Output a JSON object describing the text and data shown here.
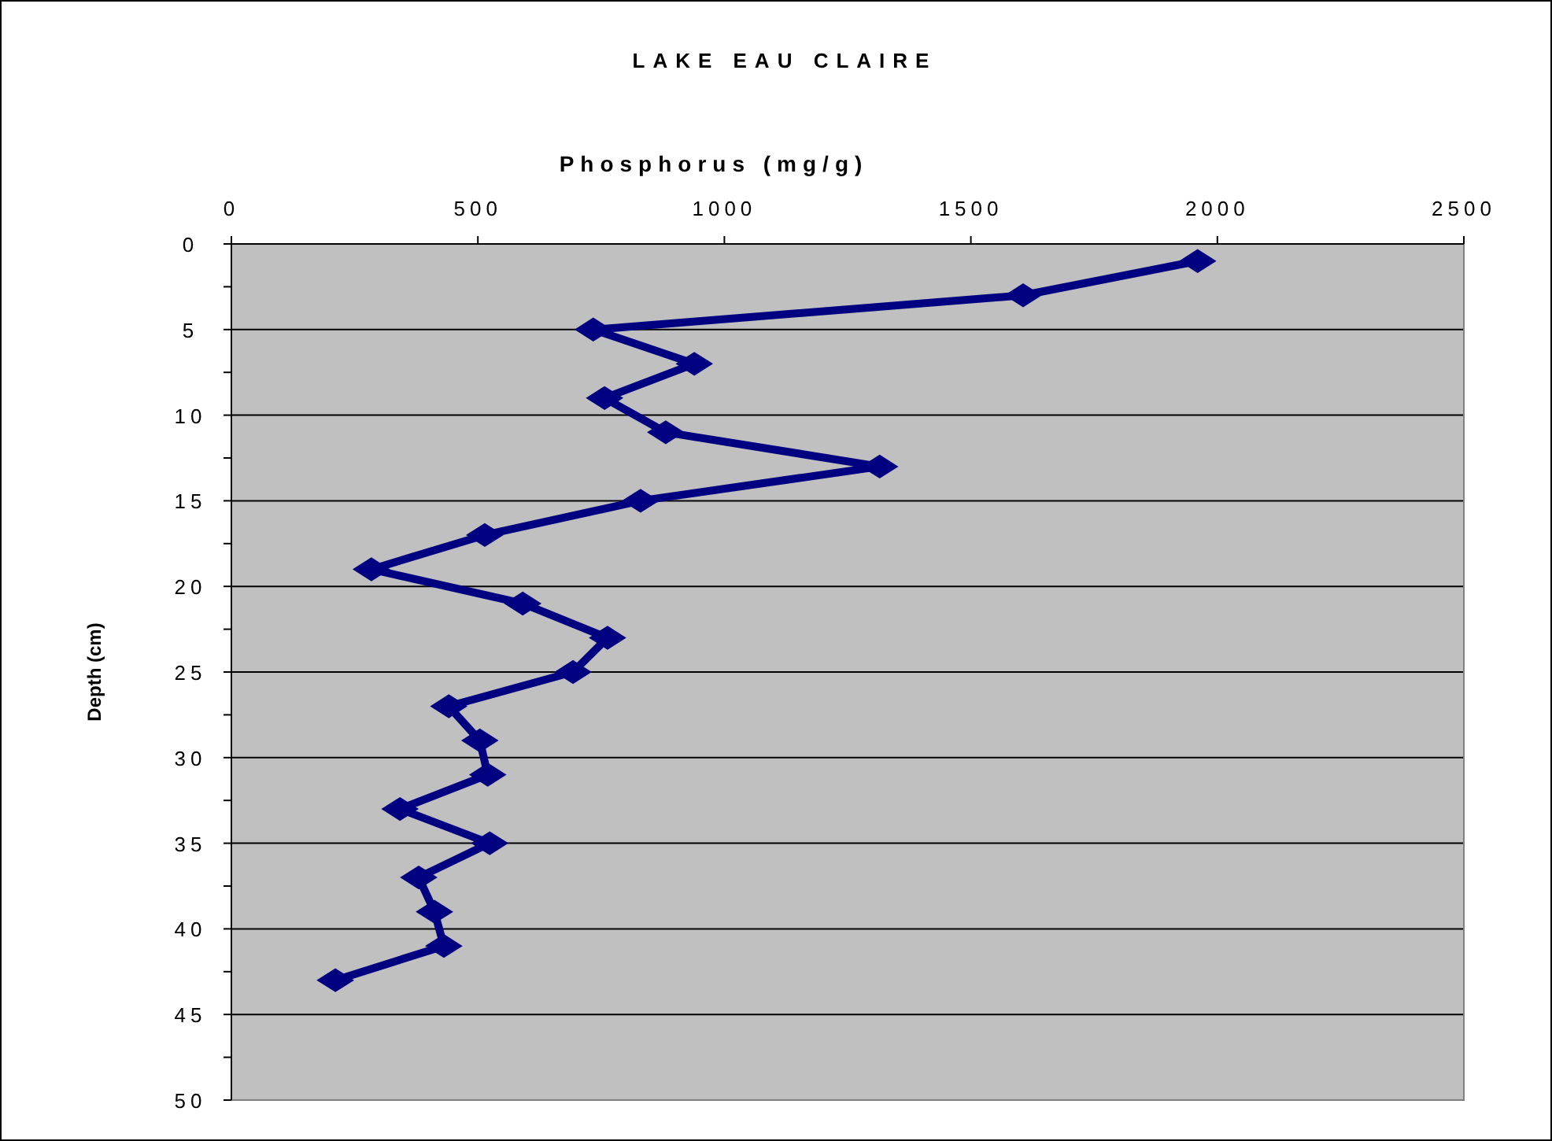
{
  "chart_data": {
    "type": "line",
    "title": "LAKE EAU CLAIRE",
    "xlabel": "Phosphorus (mg/g)",
    "ylabel": "Depth (cm)",
    "series": [
      {
        "color": "#000080",
        "x": [
          1960,
          1606,
          734,
          939,
          757,
          881,
          1315,
          830,
          514,
          284,
          591,
          763,
          693,
          441,
          504,
          520,
          342,
          524,
          380,
          412,
          431,
          211
        ],
        "values": [
          1,
          3,
          5,
          7,
          9,
          11,
          13,
          15,
          17,
          19,
          21,
          23,
          25,
          27,
          29,
          31,
          33,
          35,
          37,
          39,
          41,
          43
        ]
      }
    ],
    "xlim": [
      0,
      2500
    ],
    "xticks": [
      0,
      500,
      1000,
      1500,
      2000,
      2500
    ],
    "ylim": [
      50,
      0
    ],
    "yticks": [
      0,
      {
        "value": 2.5,
        "label": null
      },
      5,
      {
        "value": 7.5,
        "label": null
      },
      10,
      {
        "value": 12.5,
        "label": null
      },
      15,
      {
        "value": 17.5,
        "label": null
      },
      20,
      {
        "value": 22.5,
        "label": null
      },
      25,
      {
        "value": 27.5,
        "label": null
      },
      30,
      {
        "value": 32.5,
        "label": null
      },
      35,
      {
        "value": 37.5,
        "label": null
      },
      40,
      {
        "value": 42.5,
        "label": null
      },
      45,
      {
        "value": 47.5,
        "label": null
      },
      50
    ],
    "grid": "y",
    "marker": "diamond",
    "line_style": "solid"
  }
}
